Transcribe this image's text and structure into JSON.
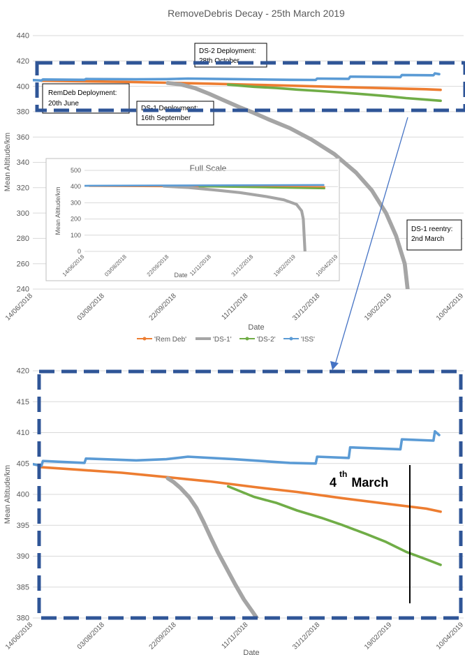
{
  "title": "RemoveDebris Decay - 25th March 2019",
  "colors": {
    "rem_deb": "#ED7D31",
    "ds1": "#A5A5A5",
    "ds2": "#70AD47",
    "iss": "#5B9BD5",
    "dash_box": "#2F5597",
    "arrow": "#4472C4",
    "grid": "#D9D9D9",
    "axis_text": "#595959"
  },
  "annotations": {
    "ds2_line1": "DS-2 Deployment:",
    "ds2_line2": "28th October",
    "remdeb_line1": "RemDeb Deployment:",
    "remdeb_line2": "20th June",
    "ds1_line1": "DS-1 Deployment:",
    "ds1_line2": "16th September",
    "reentry_line1": "DS-1 reentry:",
    "reentry_line2": "2nd March",
    "march_num": "4",
    "march_sup": "th",
    "march_word": "March"
  },
  "chart_data": [
    {
      "type": "line",
      "title": "RemoveDebris Decay - 25th March 2019",
      "xlabel": "Date",
      "ylabel": "Mean Altitude/km",
      "x_type": "date",
      "xlim": [
        "2018-06-14",
        "2019-04-10"
      ],
      "ylim": [
        240,
        440
      ],
      "yticks": [
        240,
        260,
        280,
        300,
        320,
        340,
        360,
        380,
        400,
        420,
        440
      ],
      "xticks": [
        "14/06/2018",
        "03/08/2018",
        "22/09/2018",
        "11/11/2018",
        "31/12/2018",
        "19/02/2019",
        "10/04/2019"
      ],
      "grid": true,
      "legend": "bottom",
      "series": [
        {
          "name": "'Rem Deb'",
          "points": [
            [
              "2018-06-20",
              404.4
            ],
            [
              "2018-07-15",
              404.0
            ],
            [
              "2018-08-15",
              403.5
            ],
            [
              "2018-09-15",
              402.8
            ],
            [
              "2018-10-15",
              402.1
            ],
            [
              "2018-11-15",
              401.2
            ],
            [
              "2018-12-15",
              400.4
            ],
            [
              "2019-01-15",
              399.4
            ],
            [
              "2019-02-15",
              398.5
            ],
            [
              "2019-03-15",
              397.7
            ],
            [
              "2019-03-25",
              397.2
            ]
          ]
        },
        {
          "name": "'DS-1'",
          "points": [
            [
              "2018-09-16",
              402.6
            ],
            [
              "2018-09-25",
              401.5
            ],
            [
              "2018-10-05",
              398.5
            ],
            [
              "2018-10-15",
              394.0
            ],
            [
              "2018-10-25",
              389.0
            ],
            [
              "2018-11-05",
              383.5
            ],
            [
              "2018-11-15",
              379.0
            ],
            [
              "2018-11-25",
              374.0
            ],
            [
              "2018-12-10",
              367.0
            ],
            [
              "2018-12-25",
              358.0
            ],
            [
              "2019-01-10",
              346.5
            ],
            [
              "2019-01-25",
              332.0
            ],
            [
              "2019-02-05",
              318.0
            ],
            [
              "2019-02-15",
              300.0
            ],
            [
              "2019-02-22",
              282.0
            ],
            [
              "2019-02-28",
              260.0
            ],
            [
              "2019-03-02",
              240.0
            ]
          ]
        },
        {
          "name": "'DS-2'",
          "points": [
            [
              "2018-10-28",
              401.3
            ],
            [
              "2018-11-15",
              399.6
            ],
            [
              "2018-12-01",
              398.6
            ],
            [
              "2018-12-15",
              397.4
            ],
            [
              "2019-01-01",
              396.2
            ],
            [
              "2019-01-15",
              395.1
            ],
            [
              "2019-02-01",
              393.6
            ],
            [
              "2019-02-15",
              392.3
            ],
            [
              "2019-03-01",
              390.7
            ],
            [
              "2019-03-15",
              389.5
            ],
            [
              "2019-03-25",
              388.6
            ]
          ]
        },
        {
          "name": "'ISS'",
          "points": [
            [
              "2018-06-14",
              404.9
            ],
            [
              "2018-06-20",
              404.6
            ],
            [
              "2018-06-21",
              405.4
            ],
            [
              "2018-07-20",
              405.1
            ],
            [
              "2018-07-21",
              405.8
            ],
            [
              "2018-08-25",
              405.5
            ],
            [
              "2018-09-15",
              405.7
            ],
            [
              "2018-09-30",
              406.1
            ],
            [
              "2018-11-01",
              405.7
            ],
            [
              "2018-12-10",
              405.1
            ],
            [
              "2018-12-28",
              405.0
            ],
            [
              "2018-12-29",
              406.1
            ],
            [
              "2019-01-20",
              405.9
            ],
            [
              "2019-01-21",
              407.6
            ],
            [
              "2019-02-25",
              407.3
            ],
            [
              "2019-02-26",
              408.9
            ],
            [
              "2019-03-20",
              408.7
            ],
            [
              "2019-03-21",
              410.2
            ],
            [
              "2019-03-24",
              409.6
            ]
          ]
        }
      ]
    },
    {
      "type": "line",
      "title": "Full Scale",
      "xlabel": "Date",
      "ylabel": "Mean Altitude/km",
      "x_type": "date",
      "xlim": [
        "2018-06-14",
        "2019-04-10"
      ],
      "ylim": [
        0,
        500
      ],
      "yticks": [
        0,
        100,
        200,
        300,
        400,
        500
      ],
      "xticks": [
        "14/06/2018",
        "03/08/2018",
        "22/09/2018",
        "11/11/2018",
        "31/12/2018",
        "19/02/2019",
        "10/04/2019"
      ],
      "grid": true,
      "series": [
        {
          "name": "'Rem Deb'",
          "points": [
            [
              "2018-06-20",
              404
            ],
            [
              "2019-03-25",
              397
            ]
          ]
        },
        {
          "name": "'DS-1'",
          "points": [
            [
              "2018-09-16",
              402
            ],
            [
              "2018-10-15",
              394
            ],
            [
              "2018-11-15",
              379
            ],
            [
              "2018-12-15",
              363
            ],
            [
              "2019-01-15",
              339
            ],
            [
              "2019-02-05",
              318
            ],
            [
              "2019-02-20",
              290
            ],
            [
              "2019-02-26",
              250
            ],
            [
              "2019-02-28",
              200
            ],
            [
              "2019-03-01",
              100
            ],
            [
              "2019-03-02",
              0
            ]
          ]
        },
        {
          "name": "'DS-2'",
          "points": [
            [
              "2018-10-28",
              401
            ],
            [
              "2019-03-25",
              389
            ]
          ]
        },
        {
          "name": "'ISS'",
          "points": [
            [
              "2018-06-14",
              405
            ],
            [
              "2019-03-24",
              410
            ]
          ]
        }
      ]
    },
    {
      "type": "line",
      "title": "",
      "xlabel": "Date",
      "ylabel": "Mean Altitude/km",
      "x_type": "date",
      "xlim": [
        "2018-06-14",
        "2019-04-10"
      ],
      "ylim": [
        380,
        420
      ],
      "yticks": [
        380,
        385,
        390,
        395,
        400,
        405,
        410,
        415,
        420
      ],
      "xticks": [
        "14/06/2018",
        "03/08/2018",
        "22/09/2018",
        "11/11/2018",
        "31/12/2018",
        "19/02/2019",
        "10/04/2019"
      ],
      "grid": true,
      "series": [
        {
          "name": "'Rem Deb'",
          "points": [
            [
              "2018-06-20",
              404.4
            ],
            [
              "2018-07-15",
              404.0
            ],
            [
              "2018-08-15",
              403.5
            ],
            [
              "2018-09-15",
              402.8
            ],
            [
              "2018-10-15",
              402.1
            ],
            [
              "2018-11-15",
              401.2
            ],
            [
              "2018-12-15",
              400.4
            ],
            [
              "2019-01-15",
              399.4
            ],
            [
              "2019-02-15",
              398.5
            ],
            [
              "2019-03-15",
              397.7
            ],
            [
              "2019-03-25",
              397.2
            ]
          ]
        },
        {
          "name": "'DS-1'",
          "points": [
            [
              "2018-09-16",
              402.6
            ],
            [
              "2018-09-20",
              402.0
            ],
            [
              "2018-09-25",
              401.0
            ],
            [
              "2018-10-01",
              399.5
            ],
            [
              "2018-10-06",
              397.8
            ],
            [
              "2018-10-11",
              395.5
            ],
            [
              "2018-10-16",
              393.0
            ],
            [
              "2018-10-21",
              390.6
            ],
            [
              "2018-10-27",
              388.0
            ],
            [
              "2018-11-02",
              385.4
            ],
            [
              "2018-11-08",
              383.0
            ],
            [
              "2018-11-14",
              381.0
            ],
            [
              "2018-11-17",
              380.0
            ]
          ]
        },
        {
          "name": "'DS-2'",
          "points": [
            [
              "2018-10-28",
              401.3
            ],
            [
              "2018-11-15",
              399.6
            ],
            [
              "2018-12-01",
              398.6
            ],
            [
              "2018-12-15",
              397.4
            ],
            [
              "2019-01-01",
              396.2
            ],
            [
              "2019-01-15",
              395.1
            ],
            [
              "2019-02-01",
              393.6
            ],
            [
              "2019-02-15",
              392.3
            ],
            [
              "2019-03-01",
              390.7
            ],
            [
              "2019-03-15",
              389.5
            ],
            [
              "2019-03-25",
              388.6
            ]
          ]
        },
        {
          "name": "'ISS'",
          "points": [
            [
              "2018-06-14",
              404.9
            ],
            [
              "2018-06-20",
              404.6
            ],
            [
              "2018-06-21",
              405.4
            ],
            [
              "2018-07-20",
              405.1
            ],
            [
              "2018-07-21",
              405.8
            ],
            [
              "2018-08-25",
              405.5
            ],
            [
              "2018-09-15",
              405.7
            ],
            [
              "2018-09-30",
              406.1
            ],
            [
              "2018-11-01",
              405.7
            ],
            [
              "2018-12-10",
              405.1
            ],
            [
              "2018-12-28",
              405.0
            ],
            [
              "2018-12-29",
              406.1
            ],
            [
              "2019-01-20",
              405.9
            ],
            [
              "2019-01-21",
              407.6
            ],
            [
              "2019-02-25",
              407.3
            ],
            [
              "2019-02-26",
              408.9
            ],
            [
              "2019-03-20",
              408.7
            ],
            [
              "2019-03-21",
              410.2
            ],
            [
              "2019-03-24",
              409.6
            ]
          ]
        }
      ]
    }
  ]
}
